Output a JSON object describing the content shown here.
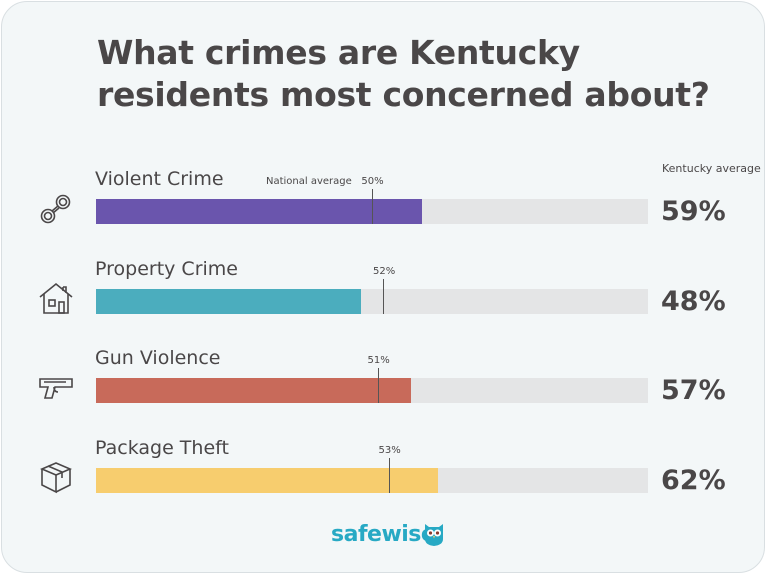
{
  "title": "What crimes are Kentucky residents most concerned about?",
  "ky_average_label": "Kentucky average",
  "national_average_prefix": "National average",
  "logo": {
    "part1": "safe",
    "part2": "wise"
  },
  "icons": [
    "handcuffs-icon",
    "house-icon",
    "gun-icon",
    "package-icon"
  ],
  "colors": {
    "violent": "#6a55ad",
    "property": "#4badbe",
    "gun": "#c86a5a",
    "package": "#f7cd6e",
    "track": "#e4e5e6",
    "brand": "#27a9c4"
  },
  "chart_data": {
    "type": "bar",
    "orientation": "horizontal",
    "title": "What crimes are Kentucky residents most concerned about?",
    "categories": [
      "Violent Crime",
      "Property Crime",
      "Gun Violence",
      "Package Theft"
    ],
    "series": [
      {
        "name": "Kentucky average",
        "values": [
          59,
          48,
          57,
          62
        ],
        "labels": [
          "59%",
          "48%",
          "57%",
          "62%"
        ]
      },
      {
        "name": "National average",
        "values": [
          50,
          52,
          51,
          53
        ],
        "labels": [
          "50%",
          "52%",
          "51%",
          "53%"
        ]
      }
    ],
    "xlim": [
      0,
      100
    ],
    "unit": "%"
  }
}
